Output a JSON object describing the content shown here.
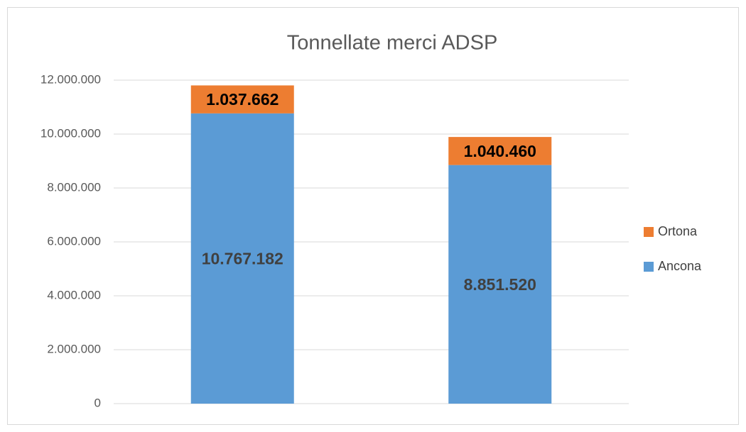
{
  "chart_data": {
    "type": "stacked_bar",
    "title": "Tonnellate merci ADSP",
    "categories": [
      null,
      null
    ],
    "series": [
      {
        "name": "Ancona",
        "color": "#5b9bd5",
        "values": [
          10767182,
          8851520
        ],
        "value_labels": [
          "10.767.182",
          "8.851.520"
        ]
      },
      {
        "name": "Ortona",
        "color": "#ed7d31",
        "values": [
          1037662,
          1040460
        ],
        "value_labels": [
          "1.037.662",
          "1.040.460"
        ]
      }
    ],
    "ylim": [
      0,
      12000000
    ],
    "yticks": [
      0,
      {
        "value": 2000000,
        "label": "2.000.000"
      },
      {
        "value": 4000000,
        "label": "4.000.000"
      },
      {
        "value": 6000000,
        "label": "6.000.000"
      },
      {
        "value": 8000000,
        "label": "8.000.000"
      },
      {
        "value": 10000000,
        "label": "10.000.000"
      },
      {
        "value": 12000000,
        "label": "12.000.000"
      }
    ],
    "grid": true,
    "legend": "right"
  }
}
